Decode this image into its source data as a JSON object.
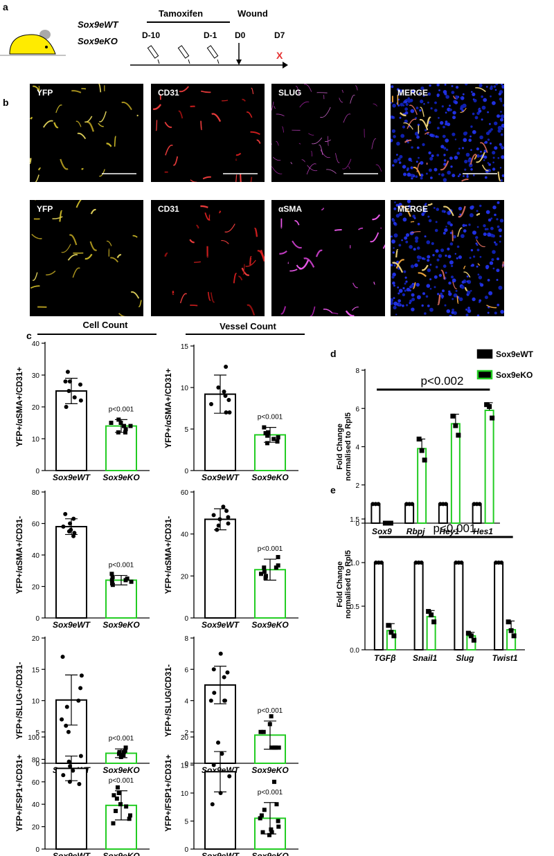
{
  "panels": {
    "a": "a",
    "b": "b",
    "c": "c",
    "d": "d",
    "e": "e"
  },
  "timeline": {
    "genotype_wt": "Sox9eWT",
    "genotype_ko": "Sox9eKO",
    "tamoxifen": "Tamoxifen",
    "wound": "Wound",
    "d_minus10": "D-10",
    "d_minus1": "D-1",
    "d0": "D0",
    "d7": "D7",
    "endmark": "X"
  },
  "micrographs": {
    "row1": [
      "YFP",
      "CD31",
      "SLUG",
      "MERGE"
    ],
    "row2": [
      "YFP",
      "CD31",
      "αSMA",
      "MERGE"
    ]
  },
  "colors": {
    "wt": "#000000",
    "ko": "#22cc22",
    "dot": "#000000",
    "redX": "#e53030"
  },
  "section_headers": {
    "cell": "Cell Count",
    "vessel": "Vessel Count"
  },
  "chart_data": [
    {
      "id": "c1",
      "type": "bar",
      "ylabel": "YFP+/αSMA+/CD31+",
      "categories": [
        "Sox9eWT",
        "Sox9eKO"
      ],
      "ylim": [
        0,
        40
      ],
      "yticks": [
        0,
        10,
        20,
        30,
        40
      ],
      "means": [
        25,
        14
      ],
      "sd": [
        4,
        2
      ],
      "points": [
        [
          31,
          28,
          27,
          25,
          23,
          20,
          22,
          28
        ],
        [
          16,
          15,
          14,
          13,
          12,
          14,
          12,
          15
        ]
      ],
      "pvalue": "p<0.001"
    },
    {
      "id": "c2",
      "type": "bar",
      "ylabel": "YFP+/αSMA+/CD31+",
      "categories": [
        "Sox9eWT",
        "Sox9eKO"
      ],
      "ylim": [
        0,
        15
      ],
      "yticks": [
        0,
        5,
        10,
        15
      ],
      "means": [
        9.2,
        4.3
      ],
      "sd": [
        2.3,
        0.9
      ],
      "points": [
        [
          12.5,
          10,
          9.5,
          9,
          8,
          7,
          7,
          8.5
        ],
        [
          5.2,
          4.5,
          4.2,
          4.0,
          3.8,
          3.5,
          4.6,
          3.3
        ]
      ],
      "pvalue": "p<0.001"
    },
    {
      "id": "c3",
      "type": "bar",
      "ylabel": "YFP+/αSMA+/CD31-",
      "categories": [
        "Sox9eWT",
        "Sox9eKO"
      ],
      "ylim": [
        0,
        80
      ],
      "yticks": [
        0,
        20,
        40,
        60,
        80
      ],
      "means": [
        58,
        24
      ],
      "sd": [
        5,
        3
      ],
      "points": [
        [
          66,
          63,
          60,
          58,
          56,
          54,
          52,
          55
        ],
        [
          28,
          26,
          25,
          24,
          23,
          22,
          21,
          24
        ]
      ],
      "pvalue": "p<0.001"
    },
    {
      "id": "c4",
      "type": "bar",
      "ylabel": "YFP+/αSMA+/CD31-",
      "categories": [
        "Sox9eWT",
        "Sox9eKO"
      ],
      "ylim": [
        0,
        60
      ],
      "yticks": [
        0,
        20,
        40,
        60
      ],
      "means": [
        47,
        23
      ],
      "sd": [
        5,
        5
      ],
      "points": [
        [
          53,
          51,
          49,
          47,
          45,
          42,
          44,
          48
        ],
        [
          29,
          25,
          24,
          22,
          20,
          19,
          24,
          21
        ]
      ],
      "pvalue": "p<0.001"
    },
    {
      "id": "c5",
      "type": "bar",
      "ylabel": "YFP+/SLUG+/CD31-",
      "categories": [
        "Sox9eWT",
        "Sox9eKO"
      ],
      "ylim": [
        0,
        20
      ],
      "yticks": [
        0,
        5,
        10,
        15,
        20
      ],
      "means": [
        10.1,
        1.6
      ],
      "sd": [
        4,
        0.7
      ],
      "points": [
        [
          17,
          14,
          12,
          10,
          9,
          7,
          6,
          5
        ],
        [
          2.5,
          2,
          1.8,
          1.5,
          1.3,
          1.2,
          1.0,
          1.8
        ]
      ],
      "pvalue": "p<0.001"
    },
    {
      "id": "c6",
      "type": "bar",
      "ylabel": "YFP+/SLUG/CD31-",
      "categories": [
        "Sox9eWT",
        "Sox9eKO"
      ],
      "ylim": [
        0,
        8
      ],
      "yticks": [
        0,
        2,
        4,
        6,
        8
      ],
      "means": [
        5.0,
        1.8
      ],
      "sd": [
        1.2,
        0.9
      ],
      "points": [
        [
          7,
          6,
          5.5,
          4.5,
          4,
          4,
          4,
          5.8
        ],
        [
          3,
          2.5,
          2,
          1,
          1,
          1,
          2,
          1
        ]
      ],
      "pvalue": "p<0.001"
    },
    {
      "id": "c7",
      "type": "bar",
      "ylabel": "YFP+/FSP1+/CD31+",
      "categories": [
        "Sox9eWT",
        "Sox9eKO"
      ],
      "ylim": [
        0,
        100
      ],
      "yticks": [
        0,
        20,
        40,
        60,
        80,
        100
      ],
      "means": [
        72,
        39
      ],
      "sd": [
        11,
        13
      ],
      "points": [
        [
          83,
          78,
          74,
          70,
          66,
          60,
          58
        ],
        [
          55,
          50,
          45,
          40,
          38,
          34,
          30,
          27,
          23,
          48
        ]
      ],
      "pvalue": "p<0.001"
    },
    {
      "id": "c8",
      "type": "bar",
      "ylabel": "YFP+/FSP1+/CD31+",
      "categories": [
        "Sox9eWT",
        "Sox9eKO"
      ],
      "ylim": [
        0,
        20
      ],
      "yticks": [
        0,
        5,
        10,
        15,
        20
      ],
      "means": [
        13.8,
        5.5
      ],
      "sd": [
        3.6,
        2.8
      ],
      "points": [
        [
          19,
          17,
          15,
          13,
          10,
          8
        ],
        [
          12,
          8,
          7,
          6,
          5,
          4,
          3.5,
          3,
          3,
          2.5,
          5.5
        ]
      ],
      "pvalue": "p<0.001"
    },
    {
      "id": "d",
      "type": "bar",
      "ylabel": "Fold Change",
      "ylabel_line2": "normalised to Rpl5",
      "categories": [
        "Sox9",
        "Rbpj",
        "Hey1",
        "Hes1"
      ],
      "ylim": [
        0,
        8
      ],
      "yticks": [
        0,
        2,
        4,
        6,
        8
      ],
      "series": [
        {
          "name": "Sox9eWT",
          "values": [
            1,
            1,
            1,
            1
          ],
          "sd": [
            0,
            0,
            0,
            0
          ]
        },
        {
          "name": "Sox9eKO",
          "values": [
            0.02,
            3.9,
            5.2,
            5.9
          ],
          "sd": [
            0,
            0.5,
            0.5,
            0.4
          ]
        }
      ],
      "points": [
        [
          [
            1,
            1,
            1
          ],
          [
            0,
            0,
            0
          ]
        ],
        [
          [
            1,
            1,
            1
          ],
          [
            4.4,
            3.8,
            3.3
          ]
        ],
        [
          [
            1,
            1,
            1
          ],
          [
            5.6,
            5.1,
            4.6
          ]
        ],
        [
          [
            1,
            1,
            1
          ],
          [
            6.2,
            6.1,
            5.5
          ]
        ]
      ],
      "pvalue": "p<0.002",
      "legend": [
        "Sox9eWT",
        "Sox9eKO"
      ]
    },
    {
      "id": "e",
      "type": "bar",
      "ylabel": "Fold Change",
      "ylabel_line2": "normalised to Rpl5",
      "categories": [
        "TGFβ",
        "Snail1",
        "Slug",
        "Twist1"
      ],
      "ylim": [
        0,
        1.5
      ],
      "yticks": [
        0,
        0.5,
        1.0,
        1.5
      ],
      "ytick_labels": [
        "0.0",
        "0.5",
        "1.0",
        "1.5"
      ],
      "series": [
        {
          "name": "Sox9eWT",
          "values": [
            1,
            1,
            1,
            1
          ],
          "sd": [
            0,
            0,
            0,
            0
          ]
        },
        {
          "name": "Sox9eKO",
          "values": [
            0.22,
            0.38,
            0.16,
            0.23
          ],
          "sd": [
            0.08,
            0.07,
            0.04,
            0.1
          ]
        }
      ],
      "points": [
        [
          [
            1,
            1,
            1
          ],
          [
            0.28,
            0.2,
            0.16
          ]
        ],
        [
          [
            1,
            1,
            1
          ],
          [
            0.44,
            0.4,
            0.32
          ]
        ],
        [
          [
            1,
            1,
            1
          ],
          [
            0.19,
            0.16,
            0.11
          ]
        ],
        [
          [
            1,
            1,
            1
          ],
          [
            0.32,
            0.22,
            0.16
          ]
        ]
      ],
      "pvalue": "p<0.001"
    }
  ]
}
